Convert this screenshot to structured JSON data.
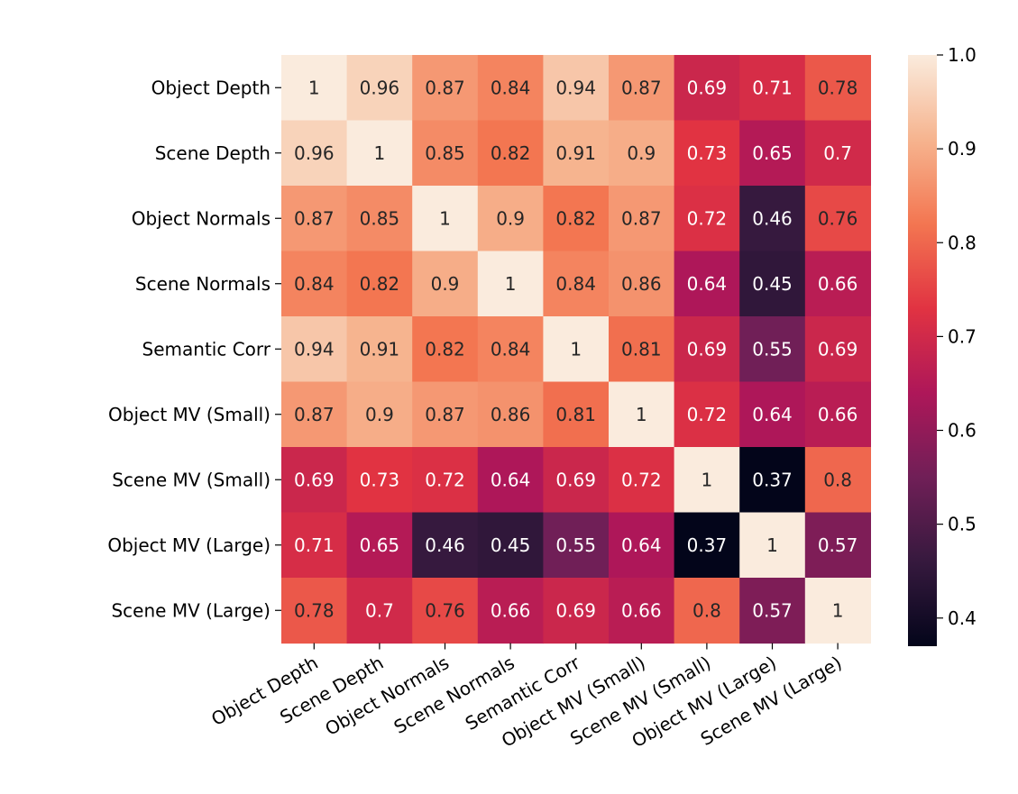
{
  "chart_data": {
    "type": "heatmap",
    "title": "",
    "xlabel": "",
    "ylabel": "",
    "row_labels": [
      "Object Depth",
      "Scene Depth",
      "Object Normals",
      "Scene Normals",
      "Semantic Corr",
      "Object MV (Small)",
      "Scene MV (Small)",
      "Object MV (Large)",
      "Scene MV (Large)"
    ],
    "col_labels": [
      "Object Depth",
      "Scene Depth",
      "Object Normals",
      "Scene Normals",
      "Semantic Corr",
      "Object MV (Small)",
      "Scene MV (Small)",
      "Object MV (Large)",
      "Scene MV (Large)"
    ],
    "values": [
      [
        1,
        0.96,
        0.87,
        0.84,
        0.94,
        0.87,
        0.69,
        0.71,
        0.78
      ],
      [
        0.96,
        1,
        0.85,
        0.82,
        0.91,
        0.9,
        0.73,
        0.65,
        0.7
      ],
      [
        0.87,
        0.85,
        1,
        0.9,
        0.82,
        0.87,
        0.72,
        0.46,
        0.76
      ],
      [
        0.84,
        0.82,
        0.9,
        1,
        0.84,
        0.86,
        0.64,
        0.45,
        0.66
      ],
      [
        0.94,
        0.91,
        0.82,
        0.84,
        1,
        0.81,
        0.69,
        0.55,
        0.69
      ],
      [
        0.87,
        0.9,
        0.87,
        0.86,
        0.81,
        1,
        0.72,
        0.64,
        0.66
      ],
      [
        0.69,
        0.73,
        0.72,
        0.64,
        0.69,
        0.72,
        1,
        0.37,
        0.8
      ],
      [
        0.71,
        0.65,
        0.46,
        0.45,
        0.55,
        0.64,
        0.37,
        1,
        0.57
      ],
      [
        0.78,
        0.7,
        0.76,
        0.66,
        0.69,
        0.66,
        0.8,
        0.57,
        1
      ]
    ],
    "colorbar": {
      "ticks": [
        "1.0",
        "0.9",
        "0.8",
        "0.7",
        "0.6",
        "0.5",
        "0.4"
      ],
      "range": [
        0.37,
        1.0
      ],
      "colormap": "rocket"
    },
    "colormap_stops": [
      "#03051a",
      "#36193e",
      "#701f57",
      "#ae1759",
      "#e13342",
      "#f37651",
      "#f6b48f",
      "#faebdd"
    ],
    "annotation_colors": {
      "dark_text": "#262626",
      "light_text": "#ffffff"
    }
  }
}
